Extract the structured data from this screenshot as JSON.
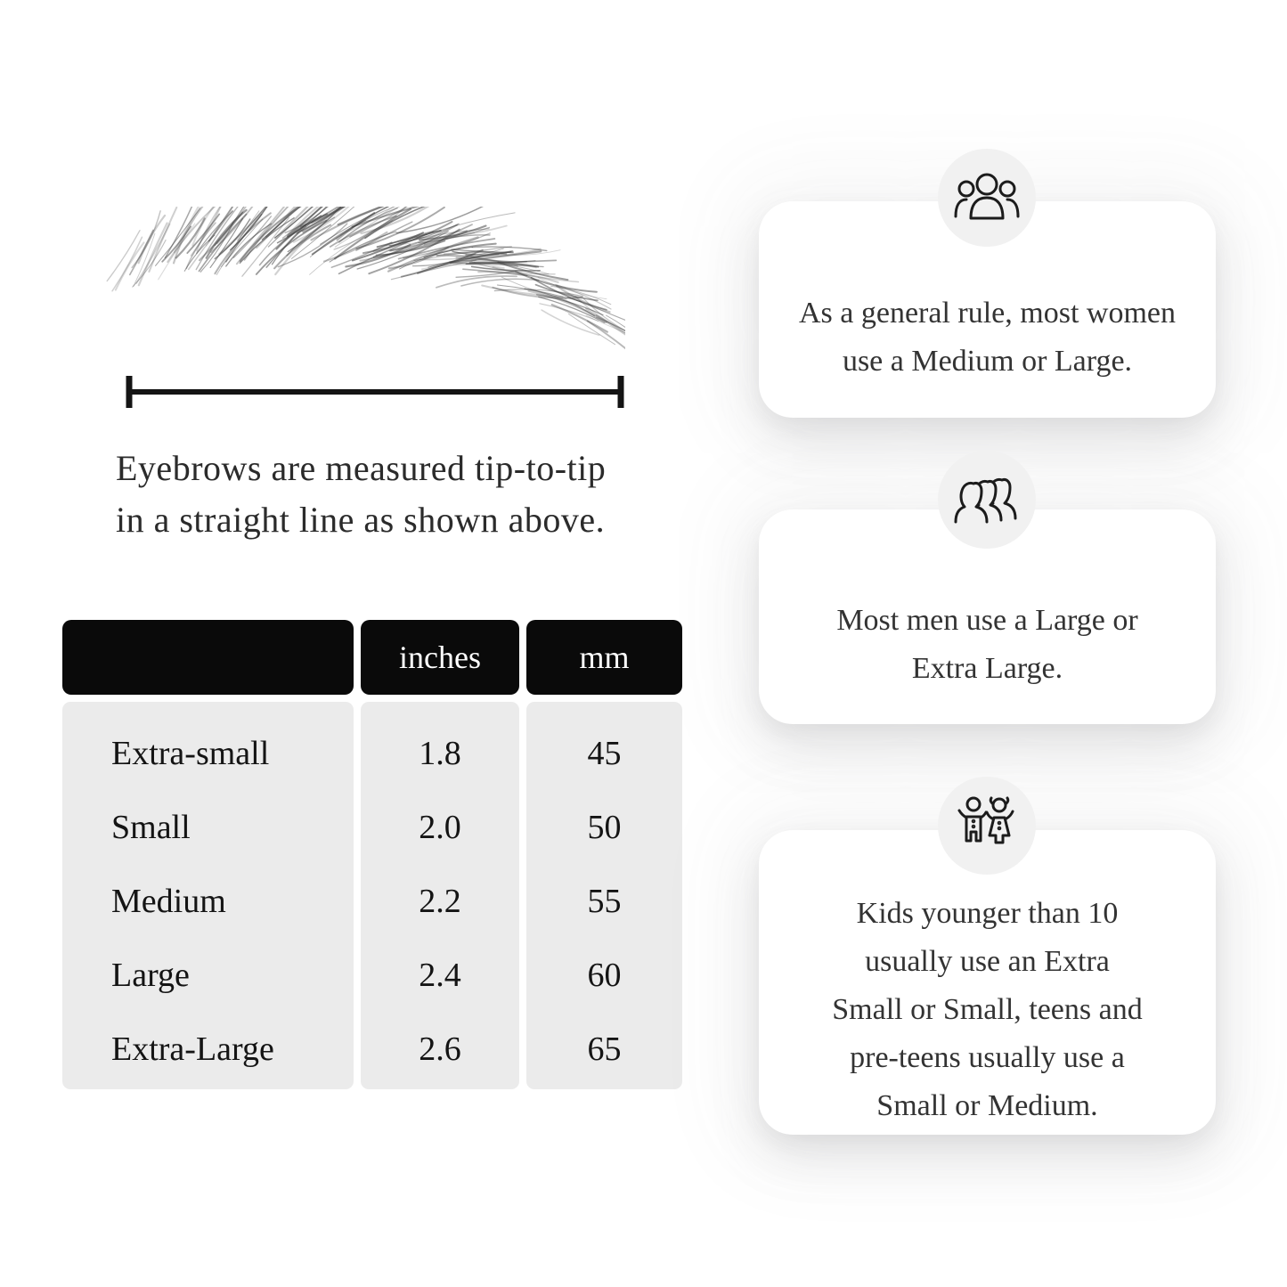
{
  "diagram": {
    "caption_lines": [
      "Eyebrows are measured tip-to-tip",
      "in a straight line as shown above."
    ],
    "line_color": "#141414"
  },
  "size_table": {
    "header": {
      "name": "",
      "inches": "inches",
      "mm": "mm"
    },
    "header_bg": "#0a0a0a",
    "body_bg": "#ebebeb",
    "rows": [
      {
        "name": "Extra-small",
        "inches": "1.8",
        "mm": "45"
      },
      {
        "name": "Small",
        "inches": "2.0",
        "mm": "50"
      },
      {
        "name": "Medium",
        "inches": "2.2",
        "mm": "55"
      },
      {
        "name": "Large",
        "inches": "2.4",
        "mm": "60"
      },
      {
        "name": "Extra-Large",
        "inches": "2.6",
        "mm": "65"
      }
    ]
  },
  "tips": [
    {
      "icon": "women-group-icon",
      "lines": [
        "As a general rule, most women",
        "use a Medium or Large."
      ]
    },
    {
      "icon": "men-group-icon",
      "lines": [
        "Most men use a Large or",
        "Extra Large."
      ]
    },
    {
      "icon": "kids-icon",
      "lines": [
        "Kids younger than 10",
        "usually use an Extra",
        "Small or Small, teens and",
        "pre-teens usually use a",
        "Small or Medium."
      ]
    }
  ]
}
